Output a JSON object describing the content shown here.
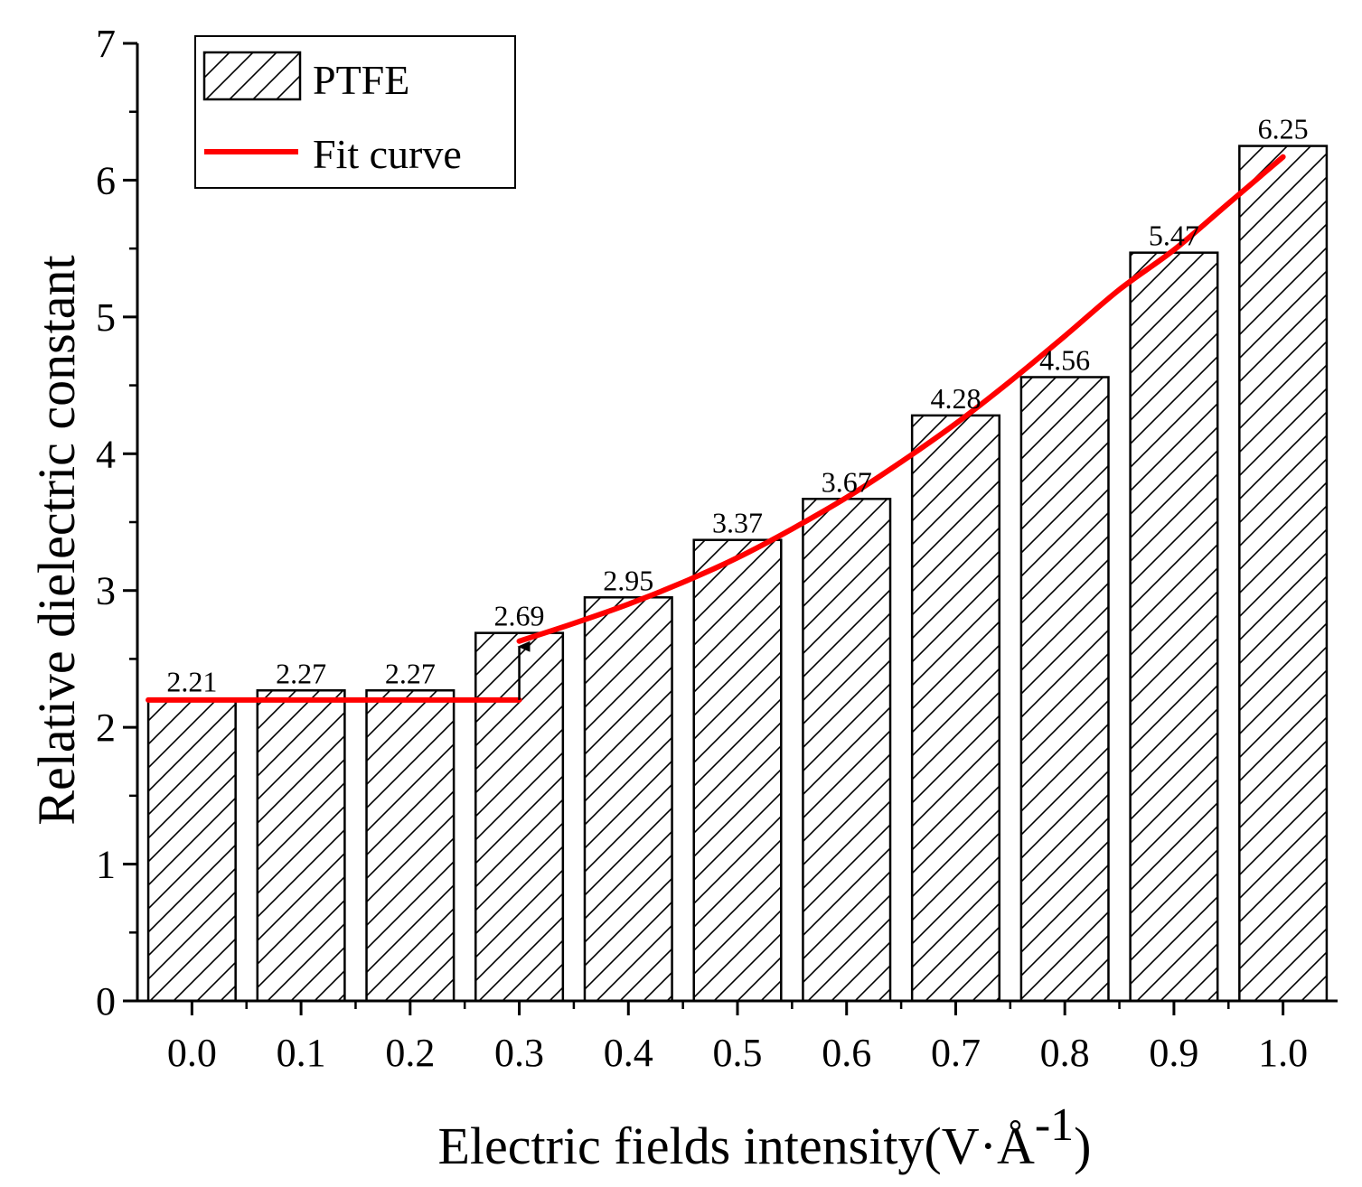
{
  "chart_data": {
    "type": "bar",
    "title": "",
    "xlabel": "Electric fields intensity(V·Å",
    "xlabel_superscript": "-1",
    "xlabel_close": ")",
    "ylabel": "Relative dielectric constant",
    "categories": [
      "0.0",
      "0.1",
      "0.2",
      "0.3",
      "0.4",
      "0.5",
      "0.6",
      "0.7",
      "0.8",
      "0.9",
      "1.0"
    ],
    "x_values": [
      0.0,
      0.1,
      0.2,
      0.3,
      0.4,
      0.5,
      0.6,
      0.7,
      0.8,
      0.9,
      1.0
    ],
    "series": [
      {
        "name": "PTFE",
        "values": [
          2.21,
          2.27,
          2.27,
          2.69,
          2.95,
          3.37,
          3.67,
          4.28,
          4.56,
          5.47,
          6.25
        ],
        "labels": [
          "2.21",
          "2.27",
          "2.27",
          "2.69",
          "2.95",
          "3.37",
          "3.67",
          "4.28",
          "4.56",
          "5.47",
          "6.25"
        ],
        "pattern": "diagonal-hatch"
      }
    ],
    "fit_curve": {
      "name": "Fit curve",
      "color": "#ff0000",
      "flat_segment": {
        "x_start": -0.04,
        "x_end": 0.3,
        "y": 2.2
      },
      "curve_points": [
        [
          0.3,
          2.63
        ],
        [
          0.35,
          2.76
        ],
        [
          0.4,
          2.9
        ],
        [
          0.45,
          3.06
        ],
        [
          0.5,
          3.24
        ],
        [
          0.55,
          3.45
        ],
        [
          0.6,
          3.68
        ],
        [
          0.65,
          3.94
        ],
        [
          0.7,
          4.22
        ],
        [
          0.75,
          4.53
        ],
        [
          0.8,
          4.86
        ],
        [
          0.85,
          5.2
        ],
        [
          0.9,
          5.49
        ],
        [
          0.95,
          5.83
        ],
        [
          1.0,
          6.17
        ]
      ],
      "jump_arrow": {
        "x": 0.3,
        "from_y": 2.2,
        "to_y": 2.63
      }
    },
    "y_ticks": [
      0,
      1,
      2,
      3,
      4,
      5,
      6,
      7
    ],
    "ylim": [
      0,
      7
    ],
    "xlim": [
      -0.05,
      1.05
    ],
    "grid": false,
    "legend_position": "top-left"
  }
}
